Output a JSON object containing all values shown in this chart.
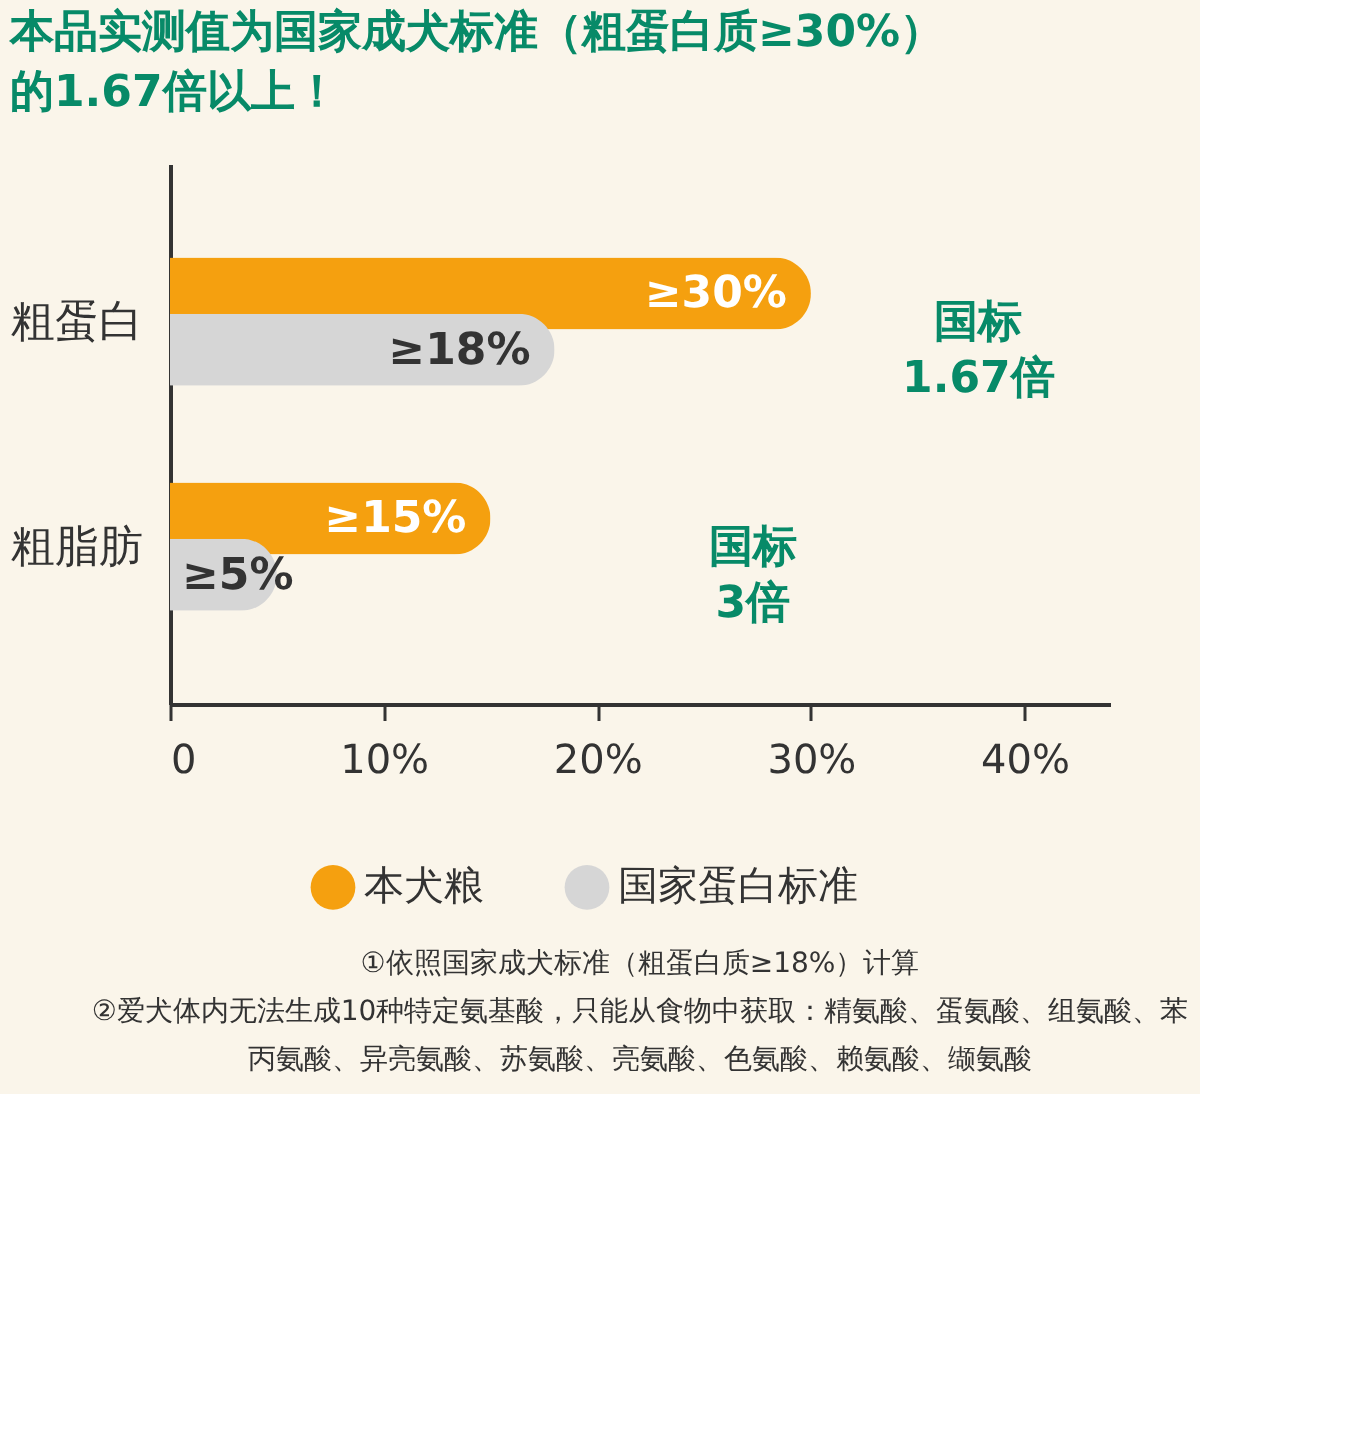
{
  "chart_data": {
    "type": "bar",
    "orientation": "horizontal",
    "title": "本品实测值为国家成犬标准（粗蛋白质≥30%）的1.67倍以上！",
    "categories": [
      "粗蛋白",
      "粗脂肪"
    ],
    "series": [
      {
        "name": "本犬粮",
        "color": "#f5a00f",
        "values": [
          30,
          15
        ],
        "value_labels": [
          "≥30%",
          "≥15%"
        ]
      },
      {
        "name": "国家蛋白标准",
        "color": "#d6d6d6",
        "values": [
          18,
          5
        ],
        "value_labels": [
          "≥18%",
          "≥5%"
        ]
      }
    ],
    "xlim": [
      0,
      44
    ],
    "xticks": [
      0,
      {
        "value": 10,
        "label": "10%"
      },
      {
        "value": 20,
        "label": "20%"
      },
      {
        "value": 30,
        "label": "30%"
      },
      {
        "value": 40,
        "label": "40%"
      }
    ],
    "grid": false,
    "legend": "bottom",
    "annotations": [
      "国标 1.67倍",
      "国标 3倍",
      "①依照国家成犬标准（粗蛋白质≥18%）计算",
      "②爱犬体内无法生成10种特定氨基酸，只能从食物中获取：精氨酸、蛋氨酸、组氨酸、苯丙氨酸、异亮氨酸、苏氨酸、亮氨酸、色氨酸、赖氨酸、缬氨酸"
    ]
  }
}
